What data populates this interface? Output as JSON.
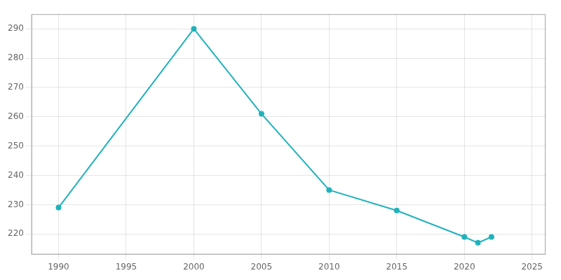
{
  "chart_data": {
    "type": "line",
    "x": [
      1990,
      2000,
      2005,
      2010,
      2015,
      2020,
      2021,
      2022
    ],
    "values": [
      229,
      290,
      261,
      235,
      228,
      219,
      217,
      219
    ],
    "color": "#20B2BB",
    "marker": "circle",
    "xlim": [
      1988,
      2026
    ],
    "xticks": [
      1990,
      1995,
      2000,
      2005,
      2010,
      2015,
      2020,
      2025
    ],
    "ylim": [
      213,
      295
    ],
    "yticks": [
      220,
      230,
      240,
      250,
      260,
      270,
      280,
      290
    ],
    "grid": true
  }
}
